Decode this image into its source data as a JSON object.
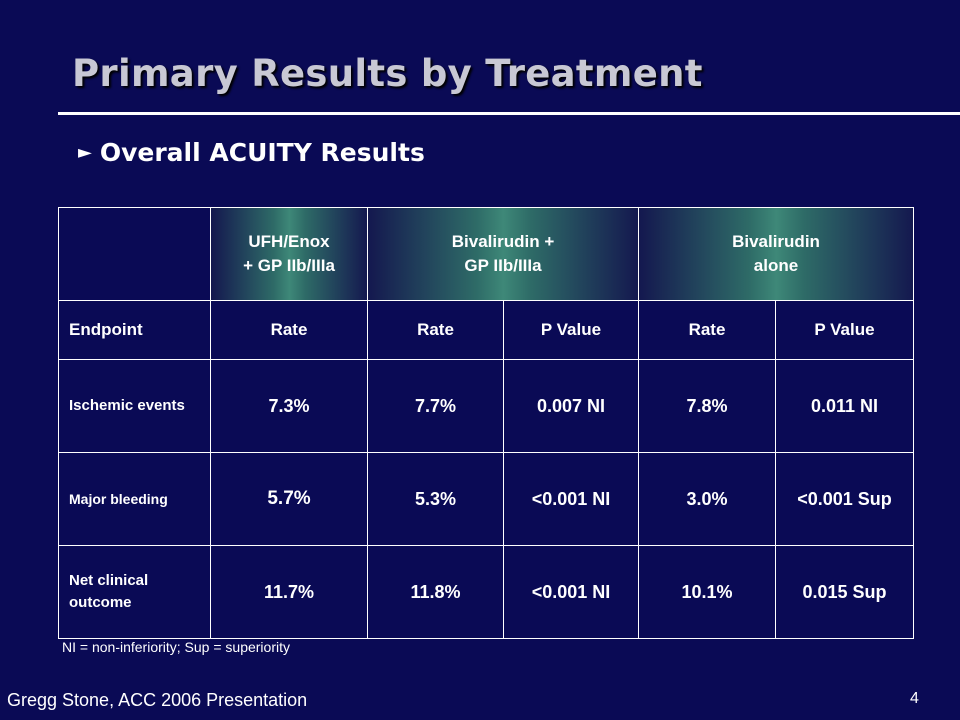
{
  "slide": {
    "title": "Primary Results by Treatment",
    "bullet": "Overall ACUITY Results",
    "footnote": "NI = non-inferiority; Sup = superiority",
    "source": "Gregg Stone, ACC 2006 Presentation",
    "page_number": "4"
  },
  "table": {
    "groups": [
      {
        "line1": "UFH/Enox",
        "line2": "+ GP IIb/IIIa"
      },
      {
        "line1": "Bivalirudin +",
        "line2": "GP IIb/IIIa"
      },
      {
        "line1": "Bivalirudin",
        "line2": "alone"
      }
    ],
    "columns": [
      "Endpoint",
      "Rate",
      "Rate",
      "P Value",
      "Rate",
      "P Value"
    ],
    "rows": [
      {
        "label": "Ischemic events",
        "values": [
          "7.3%",
          "7.7%",
          "0.007 NI",
          "7.8%",
          "0.011 NI"
        ]
      },
      {
        "label": "Major bleeding",
        "values": [
          "5.7%",
          "5.3%",
          "<0.001 NI",
          "3.0%",
          "<0.001 Sup"
        ]
      },
      {
        "label": "Net clinical outcome",
        "values": [
          "11.7%",
          "11.8%",
          "<0.001 NI",
          "10.1%",
          "0.015 Sup"
        ]
      }
    ]
  },
  "colors": {
    "background": "#0a0a55",
    "header_accent": "#3e8878",
    "title": "#c8c8d4"
  }
}
